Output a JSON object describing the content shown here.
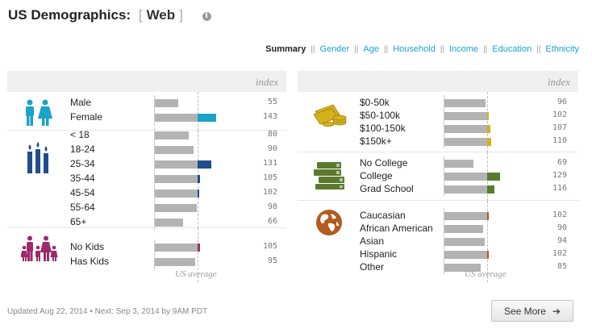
{
  "header": {
    "title": "US Demographics:",
    "bracket_open": "[",
    "selected": "Web",
    "bracket_close": "]",
    "info_icon": "i"
  },
  "tabs": [
    {
      "label": "Summary",
      "active": true
    },
    {
      "label": "Gender"
    },
    {
      "label": "Age"
    },
    {
      "label": "Household"
    },
    {
      "label": "Income"
    },
    {
      "label": "Education"
    },
    {
      "label": "Ethnicity"
    }
  ],
  "tab_separator": "||",
  "index_label": "index",
  "us_average_label": "US average",
  "colors": {
    "gender": "#1aa3c8",
    "age": "#1f4e8c",
    "kids": "#9c2a6a",
    "income": "#d4b11a",
    "education": "#5a7a2e",
    "ethnicity": "#b35a1f",
    "base_bar": "#b3b3b3"
  },
  "left_panel": {
    "groups": [
      {
        "key": "gender",
        "icon": "male-female-icon",
        "rows": [
          {
            "label": "Male",
            "value": 55
          },
          {
            "label": "Female",
            "value": 143
          }
        ]
      },
      {
        "key": "age",
        "icon": "candles-icon",
        "rows": [
          {
            "label": "< 18",
            "value": 80
          },
          {
            "label": "18-24",
            "value": 90
          },
          {
            "label": "25-34",
            "value": 131
          },
          {
            "label": "35-44",
            "value": 105
          },
          {
            "label": "45-54",
            "value": 102
          },
          {
            "label": "55-64",
            "value": 98
          },
          {
            "label": "65+",
            "value": 66
          }
        ]
      },
      {
        "key": "kids",
        "icon": "family-icon",
        "rows": [
          {
            "label": "No Kids",
            "value": 105
          },
          {
            "label": "Has Kids",
            "value": 95
          }
        ]
      }
    ]
  },
  "right_panel": {
    "groups": [
      {
        "key": "income",
        "icon": "money-coins-icon",
        "rows": [
          {
            "label": "$0-50k",
            "value": 96
          },
          {
            "label": "$50-100k",
            "value": 102
          },
          {
            "label": "$100-150k",
            "value": 107
          },
          {
            "label": "$150k+",
            "value": 110
          }
        ]
      },
      {
        "key": "education",
        "icon": "books-icon",
        "rows": [
          {
            "label": "No College",
            "value": 69
          },
          {
            "label": "College",
            "value": 129
          },
          {
            "label": "Grad School",
            "value": 116
          }
        ]
      },
      {
        "key": "ethnicity",
        "icon": "globe-icon",
        "rows": [
          {
            "label": "Caucasian",
            "value": 102
          },
          {
            "label": "African American",
            "value": 90
          },
          {
            "label": "Asian",
            "value": 94
          },
          {
            "label": "Hispanic",
            "value": 102
          },
          {
            "label": "Other",
            "value": 85
          }
        ]
      }
    ]
  },
  "footer": {
    "updated": "Updated Aug 22, 2014 • Next: Sep 3, 2014 by 9AM PDT",
    "see_more": "See More"
  }
}
